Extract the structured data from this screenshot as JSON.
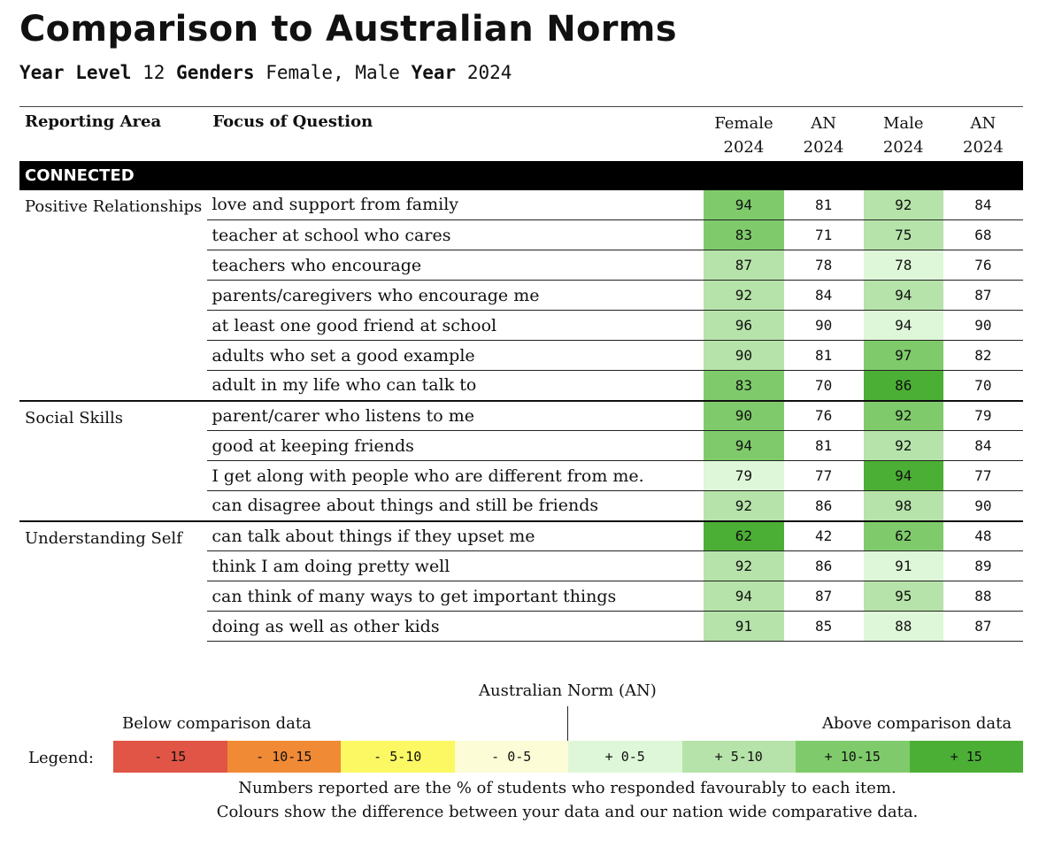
{
  "title": "Comparison to Australian Norms",
  "filters": {
    "year_level_label": "Year Level",
    "year_level_value": "12",
    "genders_label": "Genders",
    "genders_value": "Female, Male",
    "year_label": "Year",
    "year_value": "2024"
  },
  "table": {
    "headers": {
      "reporting_area": "Reporting Area",
      "focus": "Focus of Question",
      "col1_top": "Female",
      "col1_bottom": "2024",
      "col2_top": "AN",
      "col2_bottom": "2024",
      "col3_top": "Male",
      "col3_bottom": "2024",
      "col4_top": "AN",
      "col4_bottom": "2024"
    },
    "section": "CONNECTED",
    "groups": [
      {
        "area": "Positive Relationships",
        "rows": [
          {
            "focus": "love and support from family",
            "female": "94",
            "an_f": "81",
            "male": "92",
            "an_m": "84",
            "female_color": "#7fcb6b",
            "male_color": "#b6e3a9"
          },
          {
            "focus": "teacher at school who cares",
            "female": "83",
            "an_f": "71",
            "male": "75",
            "an_m": "68",
            "female_color": "#7fcb6b",
            "male_color": "#b6e3a9"
          },
          {
            "focus": "teachers who encourage",
            "female": "87",
            "an_f": "78",
            "male": "78",
            "an_m": "76",
            "female_color": "#b6e3a9",
            "male_color": "#def7d8"
          },
          {
            "focus": "parents/caregivers who encourage me",
            "female": "92",
            "an_f": "84",
            "male": "94",
            "an_m": "87",
            "female_color": "#b6e3a9",
            "male_color": "#b6e3a9"
          },
          {
            "focus": "at least one good friend at school",
            "female": "96",
            "an_f": "90",
            "male": "94",
            "an_m": "90",
            "female_color": "#b6e3a9",
            "male_color": "#def7d8"
          },
          {
            "focus": "adults who set a good example",
            "female": "90",
            "an_f": "81",
            "male": "97",
            "an_m": "82",
            "female_color": "#b6e3a9",
            "male_color": "#7fcb6b"
          },
          {
            "focus": "adult in my life who can talk to",
            "female": "83",
            "an_f": "70",
            "male": "86",
            "an_m": "70",
            "female_color": "#7fcb6b",
            "male_color": "#4caf35"
          }
        ]
      },
      {
        "area": "Social Skills",
        "rows": [
          {
            "focus": "parent/carer who listens to me",
            "female": "90",
            "an_f": "76",
            "male": "92",
            "an_m": "79",
            "female_color": "#7fcb6b",
            "male_color": "#7fcb6b"
          },
          {
            "focus": "good at keeping friends",
            "female": "94",
            "an_f": "81",
            "male": "92",
            "an_m": "84",
            "female_color": "#7fcb6b",
            "male_color": "#b6e3a9"
          },
          {
            "focus": "I get along with people who are different from me.",
            "female": "79",
            "an_f": "77",
            "male": "94",
            "an_m": "77",
            "female_color": "#def7d8",
            "male_color": "#4caf35"
          },
          {
            "focus": "can disagree about things and still be friends",
            "female": "92",
            "an_f": "86",
            "male": "98",
            "an_m": "90",
            "female_color": "#b6e3a9",
            "male_color": "#b6e3a9"
          }
        ]
      },
      {
        "area": "Understanding Self",
        "rows": [
          {
            "focus": "can talk about things if they upset me",
            "female": "62",
            "an_f": "42",
            "male": "62",
            "an_m": "48",
            "female_color": "#4caf35",
            "male_color": "#7fcb6b"
          },
          {
            "focus": "think I am doing pretty well",
            "female": "92",
            "an_f": "86",
            "male": "91",
            "an_m": "89",
            "female_color": "#b6e3a9",
            "male_color": "#def7d8"
          },
          {
            "focus": "can think of many ways to get important things",
            "female": "94",
            "an_f": "87",
            "male": "95",
            "an_m": "88",
            "female_color": "#b6e3a9",
            "male_color": "#b6e3a9"
          },
          {
            "focus": "doing as well as other kids",
            "female": "91",
            "an_f": "85",
            "male": "88",
            "an_m": "87",
            "female_color": "#b6e3a9",
            "male_color": "#def7d8"
          }
        ]
      }
    ]
  },
  "legend": {
    "norm_label": "Australian Norm (AN)",
    "below_label": "Below comparison data",
    "above_label": "Above comparison data",
    "legend_label": "Legend:",
    "items": [
      {
        "label": "- 15",
        "color": "#e05545"
      },
      {
        "label": "- 10-15",
        "color": "#f08a35"
      },
      {
        "label": "- 5-10",
        "color": "#fbf864"
      },
      {
        "label": "- 0-5",
        "color": "#fcfcd6"
      },
      {
        "label": "+ 0-5",
        "color": "#def7d8"
      },
      {
        "label": "+ 5-10",
        "color": "#b6e3a9"
      },
      {
        "label": "+ 10-15",
        "color": "#7fcb6b"
      },
      {
        "label": "+ 15",
        "color": "#4caf35"
      }
    ],
    "note1": "Numbers reported are the % of students who responded favourably to each item.",
    "note2": "Colours show the difference between your data and our nation wide comparative data."
  }
}
